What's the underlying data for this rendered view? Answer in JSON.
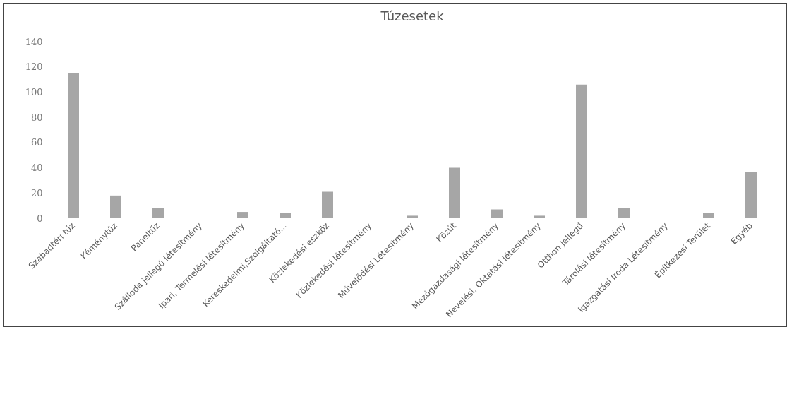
{
  "chart_data": {
    "type": "bar",
    "title": "Túzesetek",
    "categories": [
      "Szabadtéri tűz",
      "Kéménytűz",
      "Paneltűz",
      "Szálloda jellegű létesítmény",
      "Ipari, Termelési létesítmény",
      "Kereskedelmi,Szolgáltató...",
      "Közlekedési eszköz",
      "Közlekedési létesítmény",
      "Művelődési Létesítmény",
      "Közút",
      "Mezőgazdasági létesítmény",
      "Nevelési, Oktatási létesítmény",
      "Otthon jellegű",
      "Tárolási létesítmény",
      "Igazgatási Iroda Létesítmény",
      "Építkezési Terület",
      "Egyéb"
    ],
    "values": [
      115,
      18,
      8,
      0,
      5,
      4,
      21,
      0,
      2,
      40,
      7,
      2,
      106,
      8,
      0,
      4,
      37
    ],
    "color": "#a6a6a6",
    "ylim": [
      0,
      140
    ],
    "yticks": [
      0,
      20,
      40,
      60,
      80,
      100,
      120,
      140
    ],
    "grid": false
  }
}
